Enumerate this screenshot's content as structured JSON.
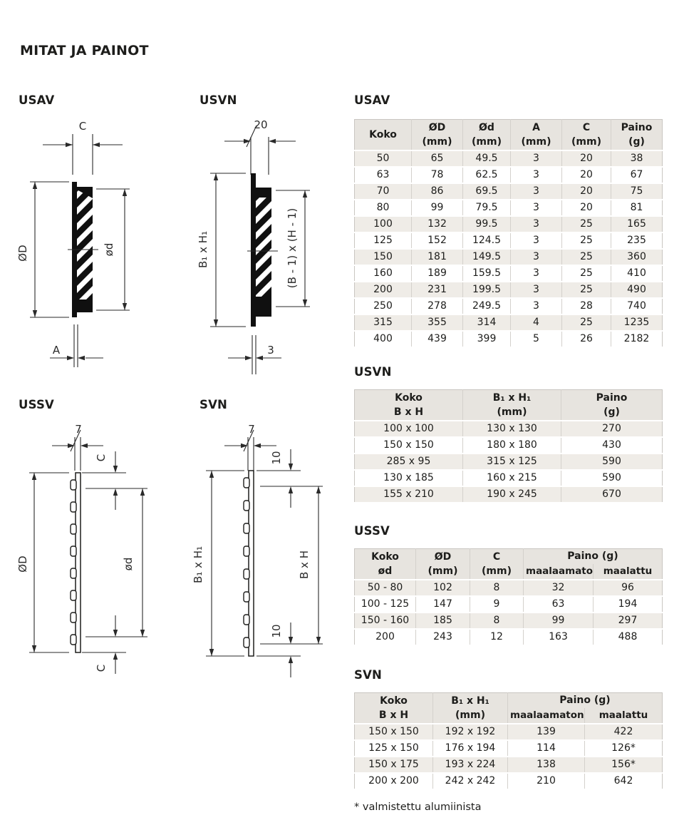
{
  "page": {
    "title": "MITAT JA PAINOT",
    "footnote": "* valmistettu alumiinista"
  },
  "diagrams": {
    "usav": {
      "label": "USAV",
      "dim_top": "C",
      "dim_left": "ØD",
      "dim_right": "ød",
      "dim_bottom": "A"
    },
    "usvn": {
      "label": "USVN",
      "dim_top": "20",
      "dim_left": "B₁ x H₁",
      "dim_right": "(B - 1) x (H - 1)",
      "dim_bottom": "3"
    },
    "ussv": {
      "label": "USSV",
      "dim_top": "7",
      "dim_top_right": "C",
      "dim_left": "ØD",
      "dim_right": "ød",
      "dim_bottom_right": "C"
    },
    "svn": {
      "label": "SVN",
      "dim_top": "7",
      "dim_top_right": "10",
      "dim_left": "B₁ x H₁",
      "dim_right": "B x H",
      "dim_bottom_right": "10"
    }
  },
  "tables": {
    "usav": {
      "title": "USAV",
      "headers": [
        {
          "l1": "Koko",
          "l2": ""
        },
        {
          "l1": "ØD",
          "l2": "(mm)"
        },
        {
          "l1": "Ød",
          "l2": "(mm)"
        },
        {
          "l1": "A",
          "l2": "(mm)"
        },
        {
          "l1": "C",
          "l2": "(mm)"
        },
        {
          "l1": "Paino",
          "l2": "(g)"
        }
      ],
      "rows": [
        [
          "50",
          "65",
          "49.5",
          "3",
          "20",
          "38"
        ],
        [
          "63",
          "78",
          "62.5",
          "3",
          "20",
          "67"
        ],
        [
          "70",
          "86",
          "69.5",
          "3",
          "20",
          "75"
        ],
        [
          "80",
          "99",
          "79.5",
          "3",
          "20",
          "81"
        ],
        [
          "100",
          "132",
          "99.5",
          "3",
          "25",
          "165"
        ],
        [
          "125",
          "152",
          "124.5",
          "3",
          "25",
          "235"
        ],
        [
          "150",
          "181",
          "149.5",
          "3",
          "25",
          "360"
        ],
        [
          "160",
          "189",
          "159.5",
          "3",
          "25",
          "410"
        ],
        [
          "200",
          "231",
          "199.5",
          "3",
          "25",
          "490"
        ],
        [
          "250",
          "278",
          "249.5",
          "3",
          "28",
          "740"
        ],
        [
          "315",
          "355",
          "314",
          "4",
          "25",
          "1235"
        ],
        [
          "400",
          "439",
          "399",
          "5",
          "26",
          "2182"
        ]
      ]
    },
    "usvn": {
      "title": "USVN",
      "headers": [
        {
          "l1": "Koko",
          "l2": "B x H"
        },
        {
          "l1": "B₁ x H₁",
          "l2": "(mm)"
        },
        {
          "l1": "Paino",
          "l2": "(g)"
        }
      ],
      "rows": [
        [
          "100 x 100",
          "130 x 130",
          "270"
        ],
        [
          "150 x 150",
          "180 x 180",
          "430"
        ],
        [
          "285 x 95",
          "315 x 125",
          "590"
        ],
        [
          "130 x 185",
          "160 x 215",
          "590"
        ],
        [
          "155 x 210",
          "190 x 245",
          "670"
        ]
      ]
    },
    "ussv": {
      "title": "USSV",
      "headers": [
        {
          "l1": "Koko",
          "l2": "ød"
        },
        {
          "l1": "ØD",
          "l2": "(mm)"
        },
        {
          "l1": "C",
          "l2": "(mm)"
        }
      ],
      "paino": {
        "label": "Paino (g)",
        "sub": [
          "maalaamaton",
          "maalattu"
        ]
      },
      "rows": [
        [
          "50 - 80",
          "102",
          "8",
          "32",
          "96"
        ],
        [
          "100 - 125",
          "147",
          "9",
          "63",
          "194"
        ],
        [
          "150 - 160",
          "185",
          "8",
          "99",
          "297"
        ],
        [
          "200",
          "243",
          "12",
          "163",
          "488"
        ]
      ]
    },
    "svn": {
      "title": "SVN",
      "headers": [
        {
          "l1": "Koko",
          "l2": "B x H"
        },
        {
          "l1": "B₁ x H₁",
          "l2": "(mm)"
        }
      ],
      "paino": {
        "label": "Paino (g)",
        "sub": [
          "maalaamaton",
          "maalattu"
        ]
      },
      "rows": [
        [
          "150 x 150",
          "192 x 192",
          "139",
          "422"
        ],
        [
          "125 x 150",
          "176 x 194",
          "114",
          "126*"
        ],
        [
          "150 x 175",
          "193 x 224",
          "138",
          "156*"
        ],
        [
          "200 x 200",
          "242 x 242",
          "210",
          "642"
        ]
      ]
    }
  }
}
